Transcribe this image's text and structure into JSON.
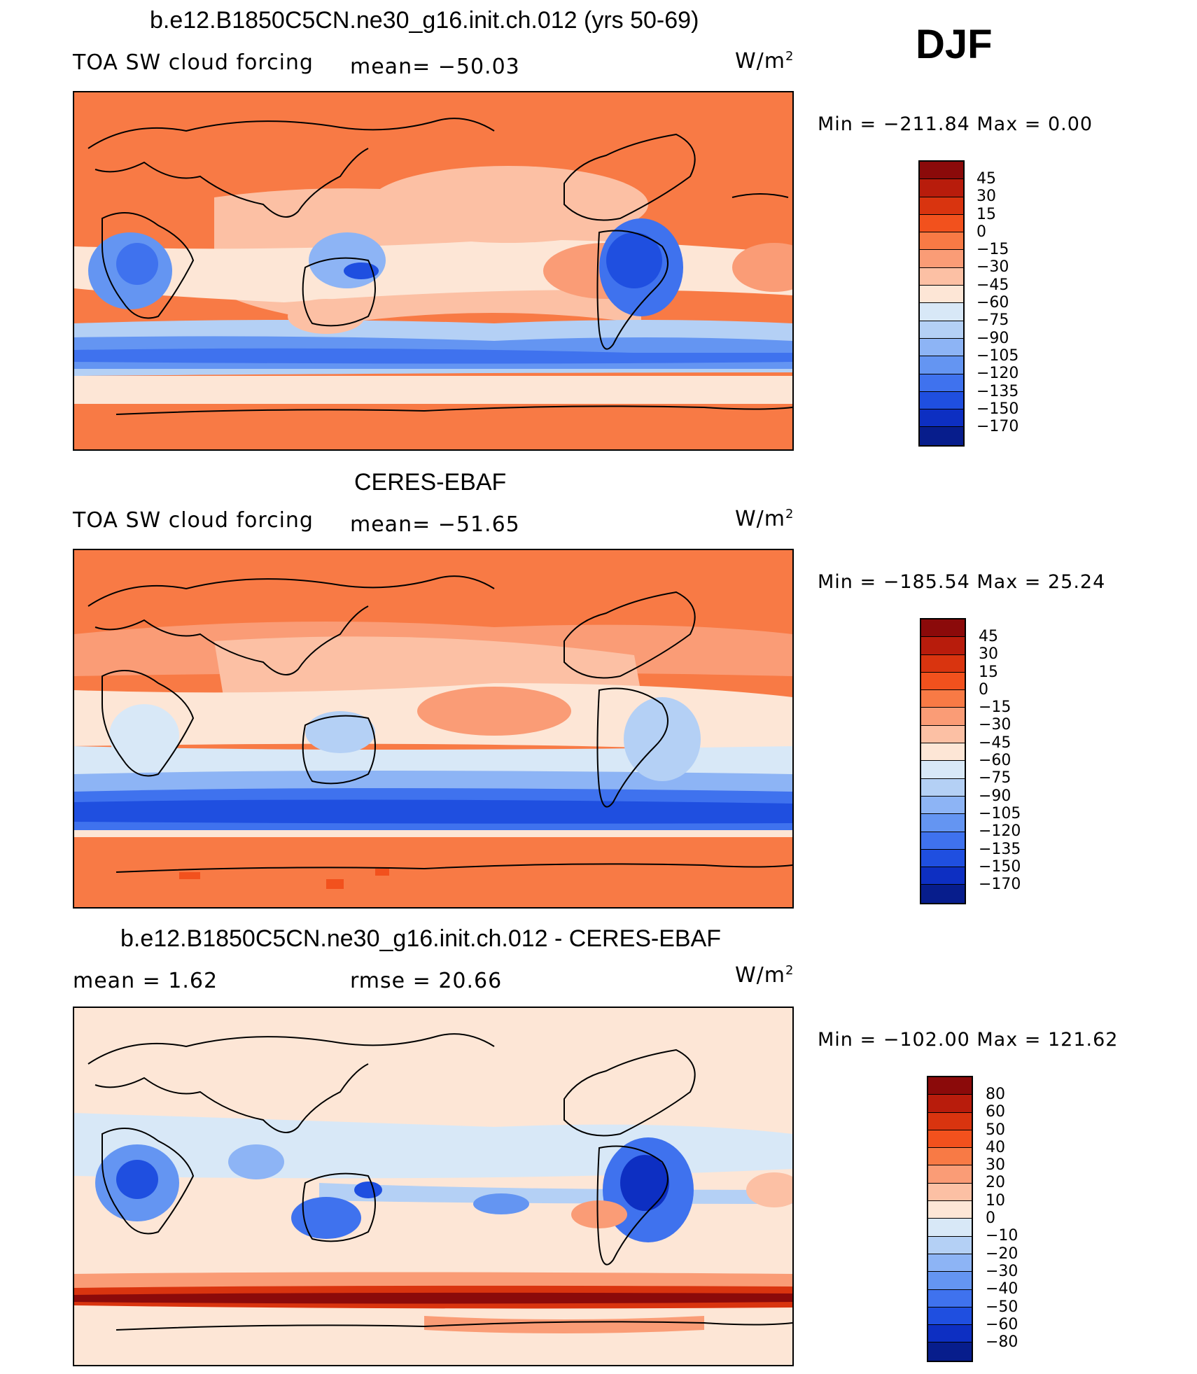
{
  "header": {
    "season": "DJF"
  },
  "panels": [
    {
      "title": "b.e12.B1850C5CN.ne30_g16.init.ch.012 (yrs 50-69)",
      "left_label": "TOA SW cloud forcing",
      "center_label": "mean=  −50.03",
      "units": "W/m",
      "minmax": "Min  =  −211.84  Max  =      0.00",
      "colorbar": {
        "labels": [
          "45",
          "30",
          "15",
          "0",
          "−15",
          "−30",
          "−45",
          "−60",
          "−75",
          "−90",
          "−105",
          "−120",
          "−135",
          "−150",
          "−170"
        ],
        "colors": [
          "#8b0a0a",
          "#b81c0c",
          "#d9340f",
          "#f2511d",
          "#f87a45",
          "#fa9c76",
          "#fcc0a4",
          "#fde6d6",
          "#d8e8f7",
          "#b4d0f5",
          "#8db4f5",
          "#6495f2",
          "#3f72ee",
          "#1f4fe0",
          "#0d2fc2",
          "#071d8c"
        ]
      }
    },
    {
      "title": "CERES-EBAF",
      "left_label": "TOA SW cloud forcing",
      "center_label": "mean=  −51.65",
      "units": "W/m",
      "minmax": "Min  =  −185.54  Max  =    25.24",
      "colorbar": {
        "labels": [
          "45",
          "30",
          "15",
          "0",
          "−15",
          "−30",
          "−45",
          "−60",
          "−75",
          "−90",
          "−105",
          "−120",
          "−135",
          "−150",
          "−170"
        ],
        "colors": [
          "#8b0a0a",
          "#b81c0c",
          "#d9340f",
          "#f2511d",
          "#f87a45",
          "#fa9c76",
          "#fcc0a4",
          "#fde6d6",
          "#d8e8f7",
          "#b4d0f5",
          "#8db4f5",
          "#6495f2",
          "#3f72ee",
          "#1f4fe0",
          "#0d2fc2",
          "#071d8c"
        ]
      }
    },
    {
      "title": "b.e12.B1850C5CN.ne30_g16.init.ch.012 - CERES-EBAF",
      "left_label": "mean  =     1.62",
      "center_label": "rmse  =    20.66",
      "units": "W/m",
      "minmax": "Min  =  −102.00  Max  =  121.62",
      "colorbar": {
        "labels": [
          "80",
          "60",
          "50",
          "40",
          "30",
          "20",
          "10",
          "0",
          "−10",
          "−20",
          "−30",
          "−40",
          "−50",
          "−60",
          "−80"
        ],
        "colors": [
          "#8b0a0a",
          "#b81c0c",
          "#d9340f",
          "#f2511d",
          "#f87a45",
          "#fa9c76",
          "#fcc0a4",
          "#fde6d6",
          "#d8e8f7",
          "#b4d0f5",
          "#8db4f5",
          "#6495f2",
          "#3f72ee",
          "#1f4fe0",
          "#0d2fc2",
          "#071d8c"
        ]
      }
    }
  ]
}
